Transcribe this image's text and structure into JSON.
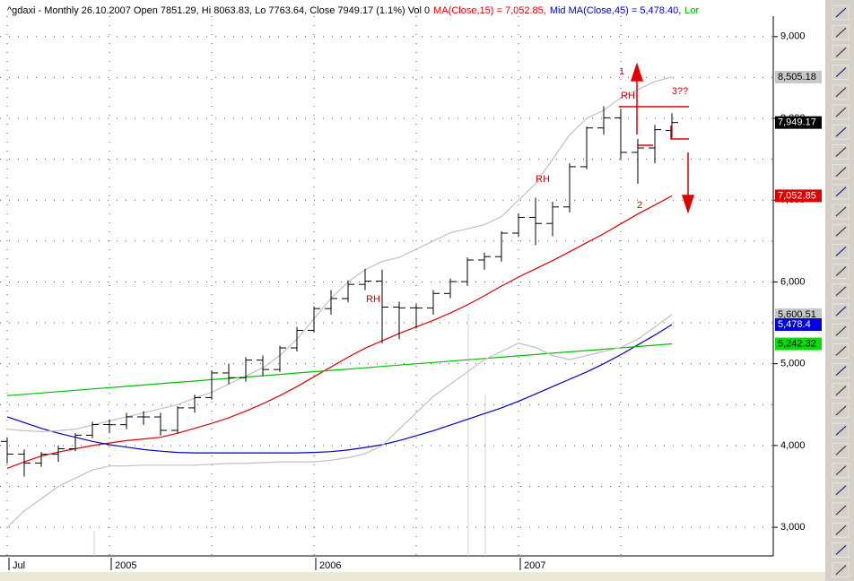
{
  "chart_data": {
    "type": "ohlc",
    "legend": [
      {
        "text": "^gdaxi - Monthly 26.10.2007 Open 7851.29, Hi 8063.83, Lo 7763.64, Close 7949.17 (1.1%) Vol 0",
        "color": "#000000"
      },
      {
        "text": "MA(Close,15) = 7,052.85,",
        "color": "#e00000"
      },
      {
        "text": "Mid MA(Close,45) = 5,478.40,",
        "color": "#0000c0"
      },
      {
        "text": "Lor",
        "color": "#00b000"
      }
    ],
    "categories": [
      "Jul",
      null,
      null,
      null,
      null,
      null,
      "2005",
      null,
      null,
      null,
      null,
      null,
      null,
      null,
      null,
      null,
      null,
      null,
      "2006",
      null,
      null,
      null,
      null,
      null,
      null,
      null,
      null,
      null,
      null,
      null,
      "2007",
      null,
      null,
      null,
      null,
      null,
      null,
      null,
      null,
      null
    ],
    "open": [
      4050,
      3895,
      3785,
      3893,
      3960,
      4126,
      4256,
      4254,
      4350,
      4349,
      4185,
      4460,
      4586,
      4887,
      4829,
      5044,
      4929,
      5193,
      5408,
      5674,
      5797,
      5970,
      6009,
      5692,
      5683,
      5681,
      5859,
      6004,
      6268,
      6309,
      6597,
      6789,
      6715,
      6917,
      7409,
      7883,
      8007,
      7584,
      7638,
      7851.29
    ],
    "high": [
      4100,
      3950,
      3920,
      4000,
      4150,
      4290,
      4320,
      4400,
      4420,
      4400,
      4480,
      4620,
      4920,
      5000,
      5080,
      5100,
      5220,
      5450,
      5700,
      5900,
      6020,
      6160,
      6150,
      5760,
      5730,
      5900,
      6040,
      6300,
      6360,
      6620,
      6840,
      7030,
      6980,
      7450,
      7900,
      8150,
      8120,
      7750,
      7920,
      8063.83
    ],
    "low": [
      3780,
      3620,
      3740,
      3800,
      3930,
      4090,
      4150,
      4200,
      4250,
      4120,
      4150,
      4400,
      4560,
      4750,
      4780,
      4850,
      4900,
      5150,
      5380,
      5600,
      5750,
      5900,
      5250,
      5300,
      5430,
      5600,
      5800,
      5950,
      6150,
      6250,
      6550,
      6450,
      6560,
      6850,
      7380,
      7800,
      7500,
      7200,
      7450,
      7763.64
    ],
    "close": [
      3895,
      3785,
      3893,
      3960,
      4126,
      4256,
      4254,
      4350,
      4349,
      4185,
      4460,
      4586,
      4887,
      4829,
      5044,
      4929,
      5193,
      5408,
      5674,
      5797,
      5970,
      6009,
      5692,
      5683,
      5681,
      5859,
      6004,
      6268,
      6309,
      6597,
      6789,
      6715,
      6917,
      7409,
      7883,
      8007,
      7584,
      7638,
      7862,
      7949.17
    ],
    "bar_color": "#000000",
    "lines": [
      {
        "color": "#e00000",
        "values": [
          3720,
          3800,
          3870,
          3920,
          3960,
          4000,
          4030,
          4060,
          4080,
          4100,
          4150,
          4210,
          4270,
          4340,
          4420,
          4510,
          4610,
          4720,
          4840,
          4960,
          5080,
          5190,
          5280,
          5370,
          5450,
          5530,
          5620,
          5720,
          5830,
          5950,
          6060,
          6160,
          6260,
          6370,
          6480,
          6590,
          6710,
          6830,
          6940,
          7052.85
        ]
      },
      {
        "color": "#0000c0",
        "values": [
          4350,
          4280,
          4210,
          4150,
          4100,
          4050,
          4010,
          3980,
          3950,
          3930,
          3915,
          3910,
          3910,
          3910,
          3910,
          3910,
          3910,
          3910,
          3915,
          3925,
          3945,
          3975,
          4010,
          4060,
          4120,
          4180,
          4250,
          4320,
          4390,
          4460,
          4540,
          4630,
          4720,
          4810,
          4900,
          5000,
          5110,
          5230,
          5350,
          5478.4
        ]
      },
      {
        "color": "#00c000",
        "values": [
          4610,
          4626,
          4642,
          4659,
          4675,
          4691,
          4707,
          4723,
          4740,
          4756,
          4772,
          4788,
          4805,
          4821,
          4837,
          4853,
          4869,
          4886,
          4902,
          4918,
          4934,
          4950,
          4967,
          4983,
          4999,
          5015,
          5031,
          5048,
          5064,
          5080,
          5096,
          5112,
          5129,
          5145,
          5161,
          5177,
          5193,
          5210,
          5226,
          5242.32
        ]
      },
      {
        "color": "#c0c0c0",
        "values": [
          4200,
          4180,
          4170,
          4180,
          4200,
          4250,
          4300,
          4350,
          4400,
          4450,
          4500,
          4580,
          4650,
          4750,
          4850,
          4950,
          5100,
          5300,
          5550,
          5800,
          6000,
          6150,
          6250,
          6300,
          6400,
          6500,
          6600,
          6650,
          6700,
          6800,
          7000,
          7200,
          7500,
          7800,
          8000,
          8100,
          8250,
          8350,
          8450,
          8505.18
        ]
      },
      {
        "color": "#c0c0c0",
        "values": [
          3000,
          3200,
          3350,
          3500,
          3600,
          3700,
          3750,
          3750,
          3760,
          3760,
          3760,
          3760,
          3770,
          3780,
          3780,
          3790,
          3800,
          3800,
          3800,
          3820,
          3850,
          3900,
          4000,
          4200,
          4400,
          4600,
          4750,
          4900,
          5050,
          5150,
          5250,
          5200,
          5100,
          5050,
          5100,
          5150,
          5200,
          5300,
          5450,
          5600.51
        ]
      }
    ],
    "ylim": [
      2650,
      9250
    ],
    "yticks": [
      {
        "value": 3000,
        "label": "3,000"
      },
      {
        "value": 4000,
        "label": "4,000"
      },
      {
        "value": 5000,
        "label": "5,000"
      },
      {
        "value": 6000,
        "label": "6,000"
      },
      {
        "value": 7000,
        "label": "7,000"
      },
      {
        "value": 8000,
        "label": "8,000"
      },
      {
        "value": 9000,
        "label": "9,000"
      }
    ],
    "minor_yticks": [
      3500,
      4500,
      5500,
      6500,
      7500,
      8500
    ],
    "grid": true,
    "price_tags": [
      {
        "value": 8505.18,
        "label": "8,505.18",
        "color": "#c8c8c8",
        "text_color": "#000000"
      },
      {
        "value": 7949.17,
        "label": "7,949.17",
        "color": "#000000",
        "text_color": "#ffffff"
      },
      {
        "value": 7052.85,
        "label": "7,052.85",
        "color": "#e00000",
        "text_color": "#ffffff"
      },
      {
        "value": 5600.51,
        "label": "5,600.51",
        "color": "#c8c8c8",
        "text_color": "#000000"
      },
      {
        "value": 5478.4,
        "label": "5,478.4",
        "color": "#0000e0",
        "text_color": "#ffffff"
      },
      {
        "value": 5242.32,
        "label": "5,242.32",
        "color": "#00e000",
        "text_color": "#000000"
      }
    ],
    "annotations": [
      "RH",
      "RH",
      "RH",
      "1",
      "2",
      "3??"
    ],
    "annotation_color": "#e00000"
  }
}
